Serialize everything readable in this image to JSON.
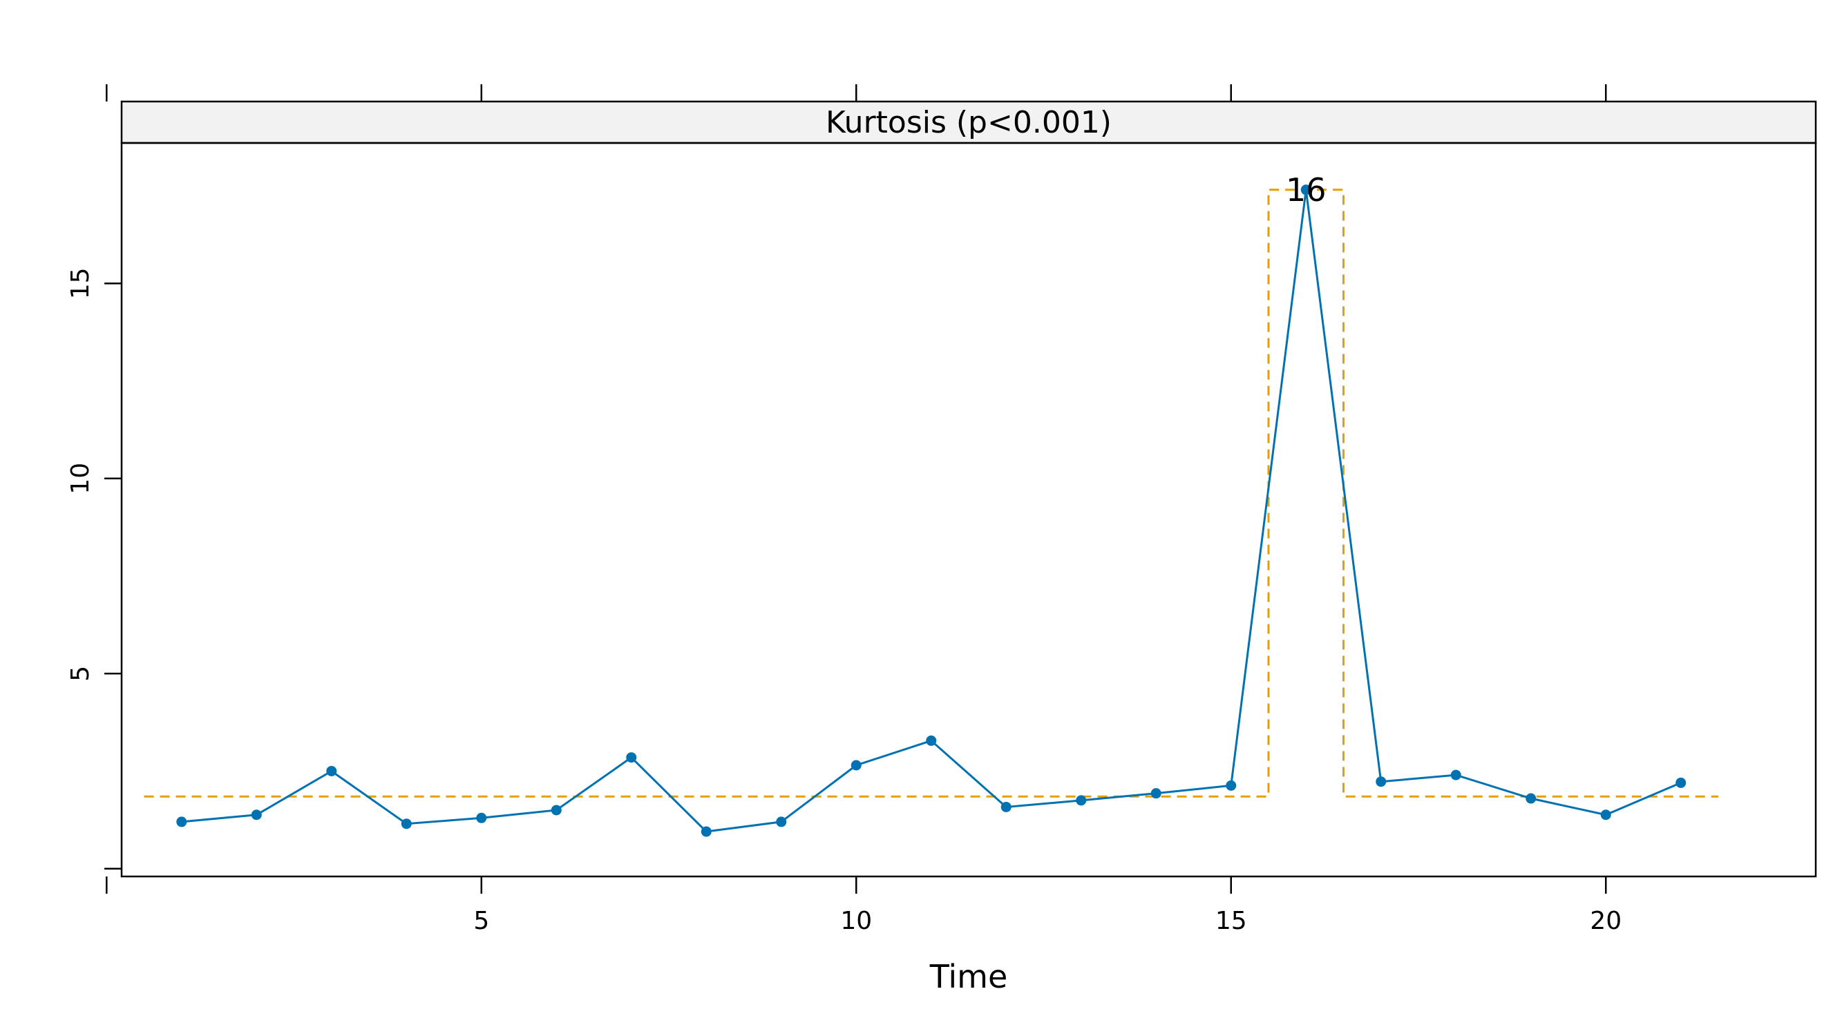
{
  "chart_data": {
    "type": "line",
    "title": "Kurtosis (p<0.001)",
    "xlabel": "Time",
    "ylabel": "",
    "xlim": [
      0.2,
      22.8
    ],
    "ylim": [
      -0.2,
      18.6
    ],
    "x_ticks": [
      0,
      5,
      10,
      15,
      20
    ],
    "x_tick_labels": [
      "",
      "5",
      "10",
      "15",
      "20"
    ],
    "y_ticks": [
      0,
      5,
      10,
      15
    ],
    "y_tick_labels": [
      "",
      "5",
      "10",
      "15"
    ],
    "grid": false,
    "series": [
      {
        "color": "#0072B2",
        "x": [
          1,
          2,
          3,
          4,
          5,
          6,
          7,
          8,
          9,
          10,
          11,
          12,
          13,
          14,
          15,
          16,
          17,
          18,
          19,
          20,
          21
        ],
        "y": [
          1.2,
          1.38,
          2.5,
          1.15,
          1.3,
          1.5,
          2.85,
          0.95,
          1.2,
          2.65,
          3.28,
          1.58,
          1.75,
          1.93,
          2.13,
          17.4,
          2.23,
          2.4,
          1.8,
          1.38,
          2.2
        ]
      }
    ],
    "threshold": {
      "color": "#E69F00",
      "style": "dashed",
      "path": [
        [
          0.5,
          1.85
        ],
        [
          15.5,
          1.85
        ],
        [
          15.5,
          17.4
        ],
        [
          16.5,
          17.4
        ],
        [
          16.5,
          1.85
        ],
        [
          21.5,
          1.85
        ]
      ]
    },
    "annotations": [
      {
        "text": "16",
        "x": 16,
        "y": 17.4
      }
    ]
  }
}
